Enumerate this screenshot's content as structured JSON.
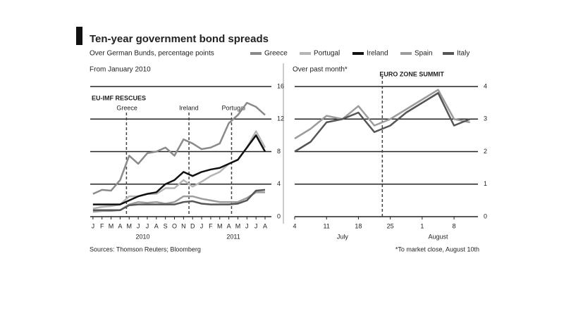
{
  "title": "Ten-year government bond spreads",
  "subtitle": "Over German Bunds, percentage points",
  "source": "Sources: Thomson Reuters; Bloomberg",
  "footnote": "*To market close, August 10th",
  "chart_data": [
    {
      "type": "line",
      "title": "From January 2010",
      "categories": [
        "J",
        "F",
        "M",
        "A",
        "M",
        "J",
        "J",
        "A",
        "S",
        "O",
        "N",
        "D",
        "J",
        "F",
        "M",
        "A",
        "M",
        "J",
        "J",
        "A"
      ],
      "year_labels": [
        "2010",
        "2011"
      ],
      "annotation": "EU-IMF RESCUES",
      "annotations": [
        "Greece",
        "Ireland",
        "Portugal"
      ],
      "ylim": [
        0,
        16
      ],
      "yticks": [
        0,
        4,
        8,
        12,
        16
      ],
      "grid": true,
      "series": [
        {
          "name": "Greece",
          "color": "#8a8a8a",
          "values": [
            2.8,
            3.3,
            3.2,
            4.5,
            7.5,
            6.5,
            7.8,
            8.0,
            8.5,
            7.5,
            9.5,
            9.0,
            8.3,
            8.5,
            9.0,
            11.5,
            12.5,
            14.0,
            13.5,
            12.5
          ]
        },
        {
          "name": "Portugal",
          "color": "#b5b5b5",
          "values": [
            1.0,
            1.2,
            1.3,
            1.5,
            2.5,
            2.5,
            2.8,
            2.8,
            3.5,
            3.5,
            4.5,
            3.7,
            4.3,
            5.0,
            5.5,
            6.5,
            7.0,
            8.5,
            10.5,
            8.5
          ]
        },
        {
          "name": "Ireland",
          "color": "#111111",
          "values": [
            1.5,
            1.5,
            1.5,
            1.5,
            2.0,
            2.5,
            2.8,
            3.0,
            4.0,
            4.5,
            5.5,
            5.0,
            5.5,
            5.8,
            6.0,
            6.5,
            7.0,
            8.5,
            10.0,
            8.0
          ]
        },
        {
          "name": "Spain",
          "color": "#9c9c9c",
          "values": [
            0.6,
            0.7,
            0.7,
            0.8,
            1.5,
            1.8,
            1.7,
            1.8,
            1.6,
            1.8,
            2.5,
            2.5,
            2.2,
            2.0,
            1.8,
            1.8,
            1.8,
            2.3,
            3.0,
            3.0
          ]
        },
        {
          "name": "Italy",
          "color": "#555555",
          "values": [
            0.8,
            0.8,
            0.8,
            0.8,
            1.4,
            1.5,
            1.5,
            1.5,
            1.5,
            1.5,
            1.8,
            1.9,
            1.6,
            1.5,
            1.5,
            1.5,
            1.6,
            2.0,
            3.2,
            3.3
          ]
        }
      ]
    },
    {
      "type": "line",
      "title": "Over past month*",
      "categories": [
        "4",
        null,
        "11",
        null,
        "18",
        null,
        "25",
        null,
        "1",
        null,
        "8",
        null
      ],
      "month_labels": [
        "July",
        "August"
      ],
      "annotation": "EURO ZONE SUMMIT",
      "ylim": [
        0,
        4
      ],
      "yticks": [
        0,
        1,
        2,
        3,
        4
      ],
      "grid": true,
      "series": [
        {
          "name": "Spain",
          "color": "#9c9c9c",
          "values": [
            2.4,
            2.7,
            3.1,
            3.0,
            3.4,
            2.8,
            3.0,
            3.3,
            3.6,
            3.9,
            3.0,
            2.9
          ]
        },
        {
          "name": "Italy",
          "color": "#555555",
          "values": [
            2.0,
            2.3,
            2.9,
            3.0,
            3.2,
            2.6,
            2.8,
            3.2,
            3.5,
            3.8,
            2.8,
            3.0
          ]
        }
      ]
    }
  ]
}
